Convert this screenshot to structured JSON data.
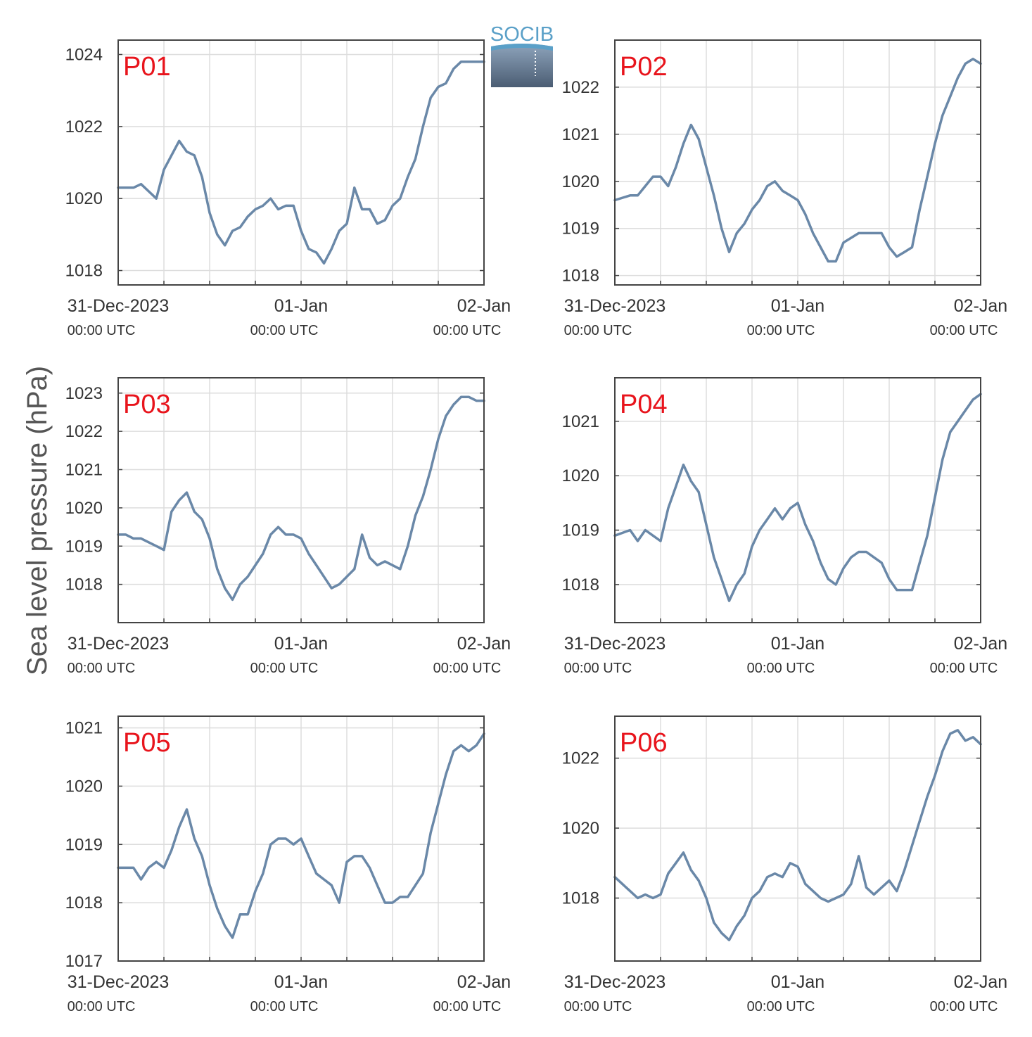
{
  "figure": {
    "ylabel": "Sea level pressure (hPa)",
    "logo_text": "SOCIB",
    "colors": {
      "line": "#6a88a8",
      "panel_label": "#e8141c",
      "grid": "#dddddd",
      "axes": "#444444",
      "logo_accent": "#5aa0c8",
      "logo_dark": "#4b5d73"
    }
  },
  "chart_data": [
    {
      "type": "line",
      "label": "P01",
      "ylim": [
        1017.6,
        1024.4
      ],
      "yticks": [
        1018,
        1020,
        1022,
        1024
      ],
      "x_ticks": [
        {
          "x": 0,
          "date": "31-Dec-2023",
          "time": "00:00 UTC"
        },
        {
          "x": 24,
          "date": "01-Jan",
          "time": "00:00 UTC"
        },
        {
          "x": 48,
          "date": "02-Jan",
          "time": "00:00 UTC"
        }
      ],
      "xlim": [
        0,
        48
      ],
      "x": [
        0,
        2,
        3,
        4,
        5,
        6,
        7,
        8,
        9,
        10,
        11,
        12,
        13,
        14,
        15,
        16,
        17,
        18,
        19,
        20,
        21,
        22,
        23,
        24,
        25,
        26,
        27,
        28,
        29,
        30,
        31,
        32,
        33,
        34,
        35,
        36,
        37,
        38,
        39,
        40,
        41,
        42,
        43,
        44,
        45,
        46,
        47,
        48
      ],
      "y": [
        1020.3,
        1020.3,
        1020.4,
        1020.2,
        1020.0,
        1020.8,
        1021.2,
        1021.6,
        1021.3,
        1021.2,
        1020.6,
        1019.6,
        1019.0,
        1018.7,
        1019.1,
        1019.2,
        1019.5,
        1019.7,
        1019.8,
        1020.0,
        1019.7,
        1019.8,
        1019.8,
        1019.1,
        1018.6,
        1018.5,
        1018.2,
        1018.6,
        1019.1,
        1019.3,
        1020.3,
        1019.7,
        1019.7,
        1019.3,
        1019.4,
        1019.8,
        1020.0,
        1020.6,
        1021.1,
        1022.0,
        1022.8,
        1023.1,
        1023.2,
        1023.6,
        1023.8,
        1023.8,
        1023.8,
        1023.8
      ]
    },
    {
      "type": "line",
      "label": "P02",
      "ylim": [
        1017.8,
        1023.0
      ],
      "yticks": [
        1018,
        1019,
        1020,
        1021,
        1022
      ],
      "x_ticks": [
        {
          "x": 0,
          "date": "31-Dec-2023",
          "time": "00:00 UTC"
        },
        {
          "x": 24,
          "date": "01-Jan",
          "time": "00:00 UTC"
        },
        {
          "x": 48,
          "date": "02-Jan",
          "time": "00:00 UTC"
        }
      ],
      "xlim": [
        0,
        48
      ],
      "x": [
        0,
        2,
        3,
        4,
        5,
        6,
        7,
        8,
        9,
        10,
        11,
        12,
        13,
        14,
        15,
        16,
        17,
        18,
        19,
        20,
        21,
        22,
        23,
        24,
        25,
        26,
        27,
        28,
        29,
        30,
        31,
        32,
        33,
        34,
        35,
        36,
        37,
        38,
        39,
        40,
        41,
        42,
        43,
        44,
        45,
        46,
        47,
        48
      ],
      "y": [
        1019.6,
        1019.7,
        1019.7,
        1019.9,
        1020.1,
        1020.1,
        1019.9,
        1020.3,
        1020.8,
        1021.2,
        1020.9,
        1020.3,
        1019.7,
        1019.0,
        1018.5,
        1018.9,
        1019.1,
        1019.4,
        1019.6,
        1019.9,
        1020.0,
        1019.8,
        1019.7,
        1019.6,
        1019.3,
        1018.9,
        1018.6,
        1018.3,
        1018.3,
        1018.7,
        1018.8,
        1018.9,
        1018.9,
        1018.9,
        1018.9,
        1018.6,
        1018.4,
        1018.5,
        1018.6,
        1019.4,
        1020.1,
        1020.8,
        1021.4,
        1021.8,
        1022.2,
        1022.5,
        1022.6,
        1022.5
      ]
    },
    {
      "type": "line",
      "label": "P03",
      "ylim": [
        1017.0,
        1023.4
      ],
      "yticks": [
        1018,
        1019,
        1020,
        1021,
        1022,
        1023
      ],
      "x_ticks": [
        {
          "x": 0,
          "date": "31-Dec-2023",
          "time": "00:00 UTC"
        },
        {
          "x": 24,
          "date": "01-Jan",
          "time": "00:00 UTC"
        },
        {
          "x": 48,
          "date": "02-Jan",
          "time": "00:00 UTC"
        }
      ],
      "xlim": [
        0,
        48
      ],
      "x": [
        0,
        1,
        2,
        3,
        4,
        5,
        6,
        7,
        8,
        9,
        10,
        11,
        12,
        13,
        14,
        15,
        16,
        17,
        18,
        19,
        20,
        21,
        22,
        23,
        24,
        25,
        26,
        27,
        28,
        29,
        30,
        31,
        32,
        33,
        34,
        35,
        36,
        37,
        38,
        39,
        40,
        41,
        42,
        43,
        44,
        45,
        46,
        47,
        48
      ],
      "y": [
        1019.3,
        1019.3,
        1019.2,
        1019.2,
        1019.1,
        1019.0,
        1018.9,
        1019.9,
        1020.2,
        1020.4,
        1019.9,
        1019.7,
        1019.2,
        1018.4,
        1017.9,
        1017.6,
        1018.0,
        1018.2,
        1018.5,
        1018.8,
        1019.3,
        1019.5,
        1019.3,
        1019.3,
        1019.2,
        1018.8,
        1018.5,
        1018.2,
        1017.9,
        1018.0,
        1018.2,
        1018.4,
        1019.3,
        1018.7,
        1018.5,
        1018.6,
        1018.5,
        1018.4,
        1019.0,
        1019.8,
        1020.3,
        1021.0,
        1021.8,
        1022.4,
        1022.7,
        1022.9,
        1022.9,
        1022.8,
        1022.8
      ]
    },
    {
      "type": "line",
      "label": "P04",
      "ylim": [
        1017.3,
        1021.8
      ],
      "yticks": [
        1018,
        1019,
        1020,
        1021
      ],
      "x_ticks": [
        {
          "x": 0,
          "date": "31-Dec-2023",
          "time": "00:00 UTC"
        },
        {
          "x": 24,
          "date": "01-Jan",
          "time": "00:00 UTC"
        },
        {
          "x": 48,
          "date": "02-Jan",
          "time": "00:00 UTC"
        }
      ],
      "xlim": [
        0,
        48
      ],
      "x": [
        0,
        2,
        3,
        4,
        5,
        6,
        7,
        8,
        9,
        10,
        11,
        12,
        13,
        14,
        15,
        16,
        17,
        18,
        19,
        20,
        21,
        22,
        23,
        24,
        25,
        26,
        27,
        28,
        29,
        30,
        31,
        32,
        33,
        34,
        35,
        36,
        37,
        38,
        39,
        40,
        41,
        42,
        43,
        44,
        45,
        46,
        47,
        48
      ],
      "y": [
        1018.9,
        1019.0,
        1018.8,
        1019.0,
        1018.9,
        1018.8,
        1019.4,
        1019.8,
        1020.2,
        1019.9,
        1019.7,
        1019.1,
        1018.5,
        1018.1,
        1017.7,
        1018.0,
        1018.2,
        1018.7,
        1019.0,
        1019.2,
        1019.4,
        1019.2,
        1019.4,
        1019.5,
        1019.1,
        1018.8,
        1018.4,
        1018.1,
        1018.0,
        1018.3,
        1018.5,
        1018.6,
        1018.6,
        1018.5,
        1018.4,
        1018.1,
        1017.9,
        1017.9,
        1017.9,
        1018.4,
        1018.9,
        1019.6,
        1020.3,
        1020.8,
        1021.0,
        1021.2,
        1021.4,
        1021.5
      ]
    },
    {
      "type": "line",
      "label": "P05",
      "ylim": [
        1017.0,
        1021.2
      ],
      "yticks": [
        1017,
        1018,
        1019,
        1020,
        1021
      ],
      "x_ticks": [
        {
          "x": 0,
          "date": "31-Dec-2023",
          "time": "00:00 UTC"
        },
        {
          "x": 24,
          "date": "01-Jan",
          "time": "00:00 UTC"
        },
        {
          "x": 48,
          "date": "02-Jan",
          "time": "00:00 UTC"
        }
      ],
      "xlim": [
        0,
        48
      ],
      "x": [
        0,
        1,
        2,
        3,
        4,
        5,
        6,
        7,
        8,
        9,
        10,
        11,
        12,
        13,
        14,
        15,
        16,
        17,
        18,
        19,
        20,
        21,
        22,
        23,
        24,
        25,
        26,
        27,
        28,
        29,
        30,
        31,
        32,
        33,
        34,
        35,
        36,
        37,
        38,
        39,
        40,
        41,
        42,
        43,
        44,
        45,
        46,
        47,
        48
      ],
      "y": [
        1018.6,
        1018.6,
        1018.6,
        1018.4,
        1018.6,
        1018.7,
        1018.6,
        1018.9,
        1019.3,
        1019.6,
        1019.1,
        1018.8,
        1018.3,
        1017.9,
        1017.6,
        1017.4,
        1017.8,
        1017.8,
        1018.2,
        1018.5,
        1019.0,
        1019.1,
        1019.1,
        1019.0,
        1019.1,
        1018.8,
        1018.5,
        1018.4,
        1018.3,
        1018.0,
        1018.7,
        1018.8,
        1018.8,
        1018.6,
        1018.3,
        1018.0,
        1018.0,
        1018.1,
        1018.1,
        1018.3,
        1018.5,
        1019.2,
        1019.7,
        1020.2,
        1020.6,
        1020.7,
        1020.6,
        1020.7,
        1020.9
      ]
    },
    {
      "type": "line",
      "label": "P06",
      "ylim": [
        1016.2,
        1023.2
      ],
      "yticks": [
        1018,
        1020,
        1022
      ],
      "x_ticks": [
        {
          "x": 0,
          "date": "31-Dec-2023",
          "time": "00:00 UTC"
        },
        {
          "x": 24,
          "date": "01-Jan",
          "time": "00:00 UTC"
        },
        {
          "x": 48,
          "date": "02-Jan",
          "time": "00:00 UTC"
        }
      ],
      "xlim": [
        0,
        48
      ],
      "x": [
        0,
        1,
        2,
        3,
        4,
        5,
        6,
        7,
        8,
        9,
        10,
        11,
        12,
        13,
        14,
        15,
        16,
        17,
        18,
        19,
        20,
        21,
        22,
        23,
        24,
        25,
        26,
        27,
        28,
        29,
        30,
        31,
        32,
        33,
        34,
        35,
        36,
        37,
        38,
        39,
        40,
        41,
        42,
        43,
        44,
        45,
        46,
        47,
        48
      ],
      "y": [
        1018.6,
        1018.4,
        1018.2,
        1018.0,
        1018.1,
        1018.0,
        1018.1,
        1018.7,
        1019.0,
        1019.3,
        1018.8,
        1018.5,
        1018.0,
        1017.3,
        1017.0,
        1016.8,
        1017.2,
        1017.5,
        1018.0,
        1018.2,
        1018.6,
        1018.7,
        1018.6,
        1019.0,
        1018.9,
        1018.4,
        1018.2,
        1018.0,
        1017.9,
        1018.0,
        1018.1,
        1018.4,
        1019.2,
        1018.3,
        1018.1,
        1018.3,
        1018.5,
        1018.2,
        1018.8,
        1019.5,
        1020.2,
        1020.9,
        1021.5,
        1022.2,
        1022.7,
        1022.8,
        1022.5,
        1022.6,
        1022.4
      ]
    }
  ]
}
